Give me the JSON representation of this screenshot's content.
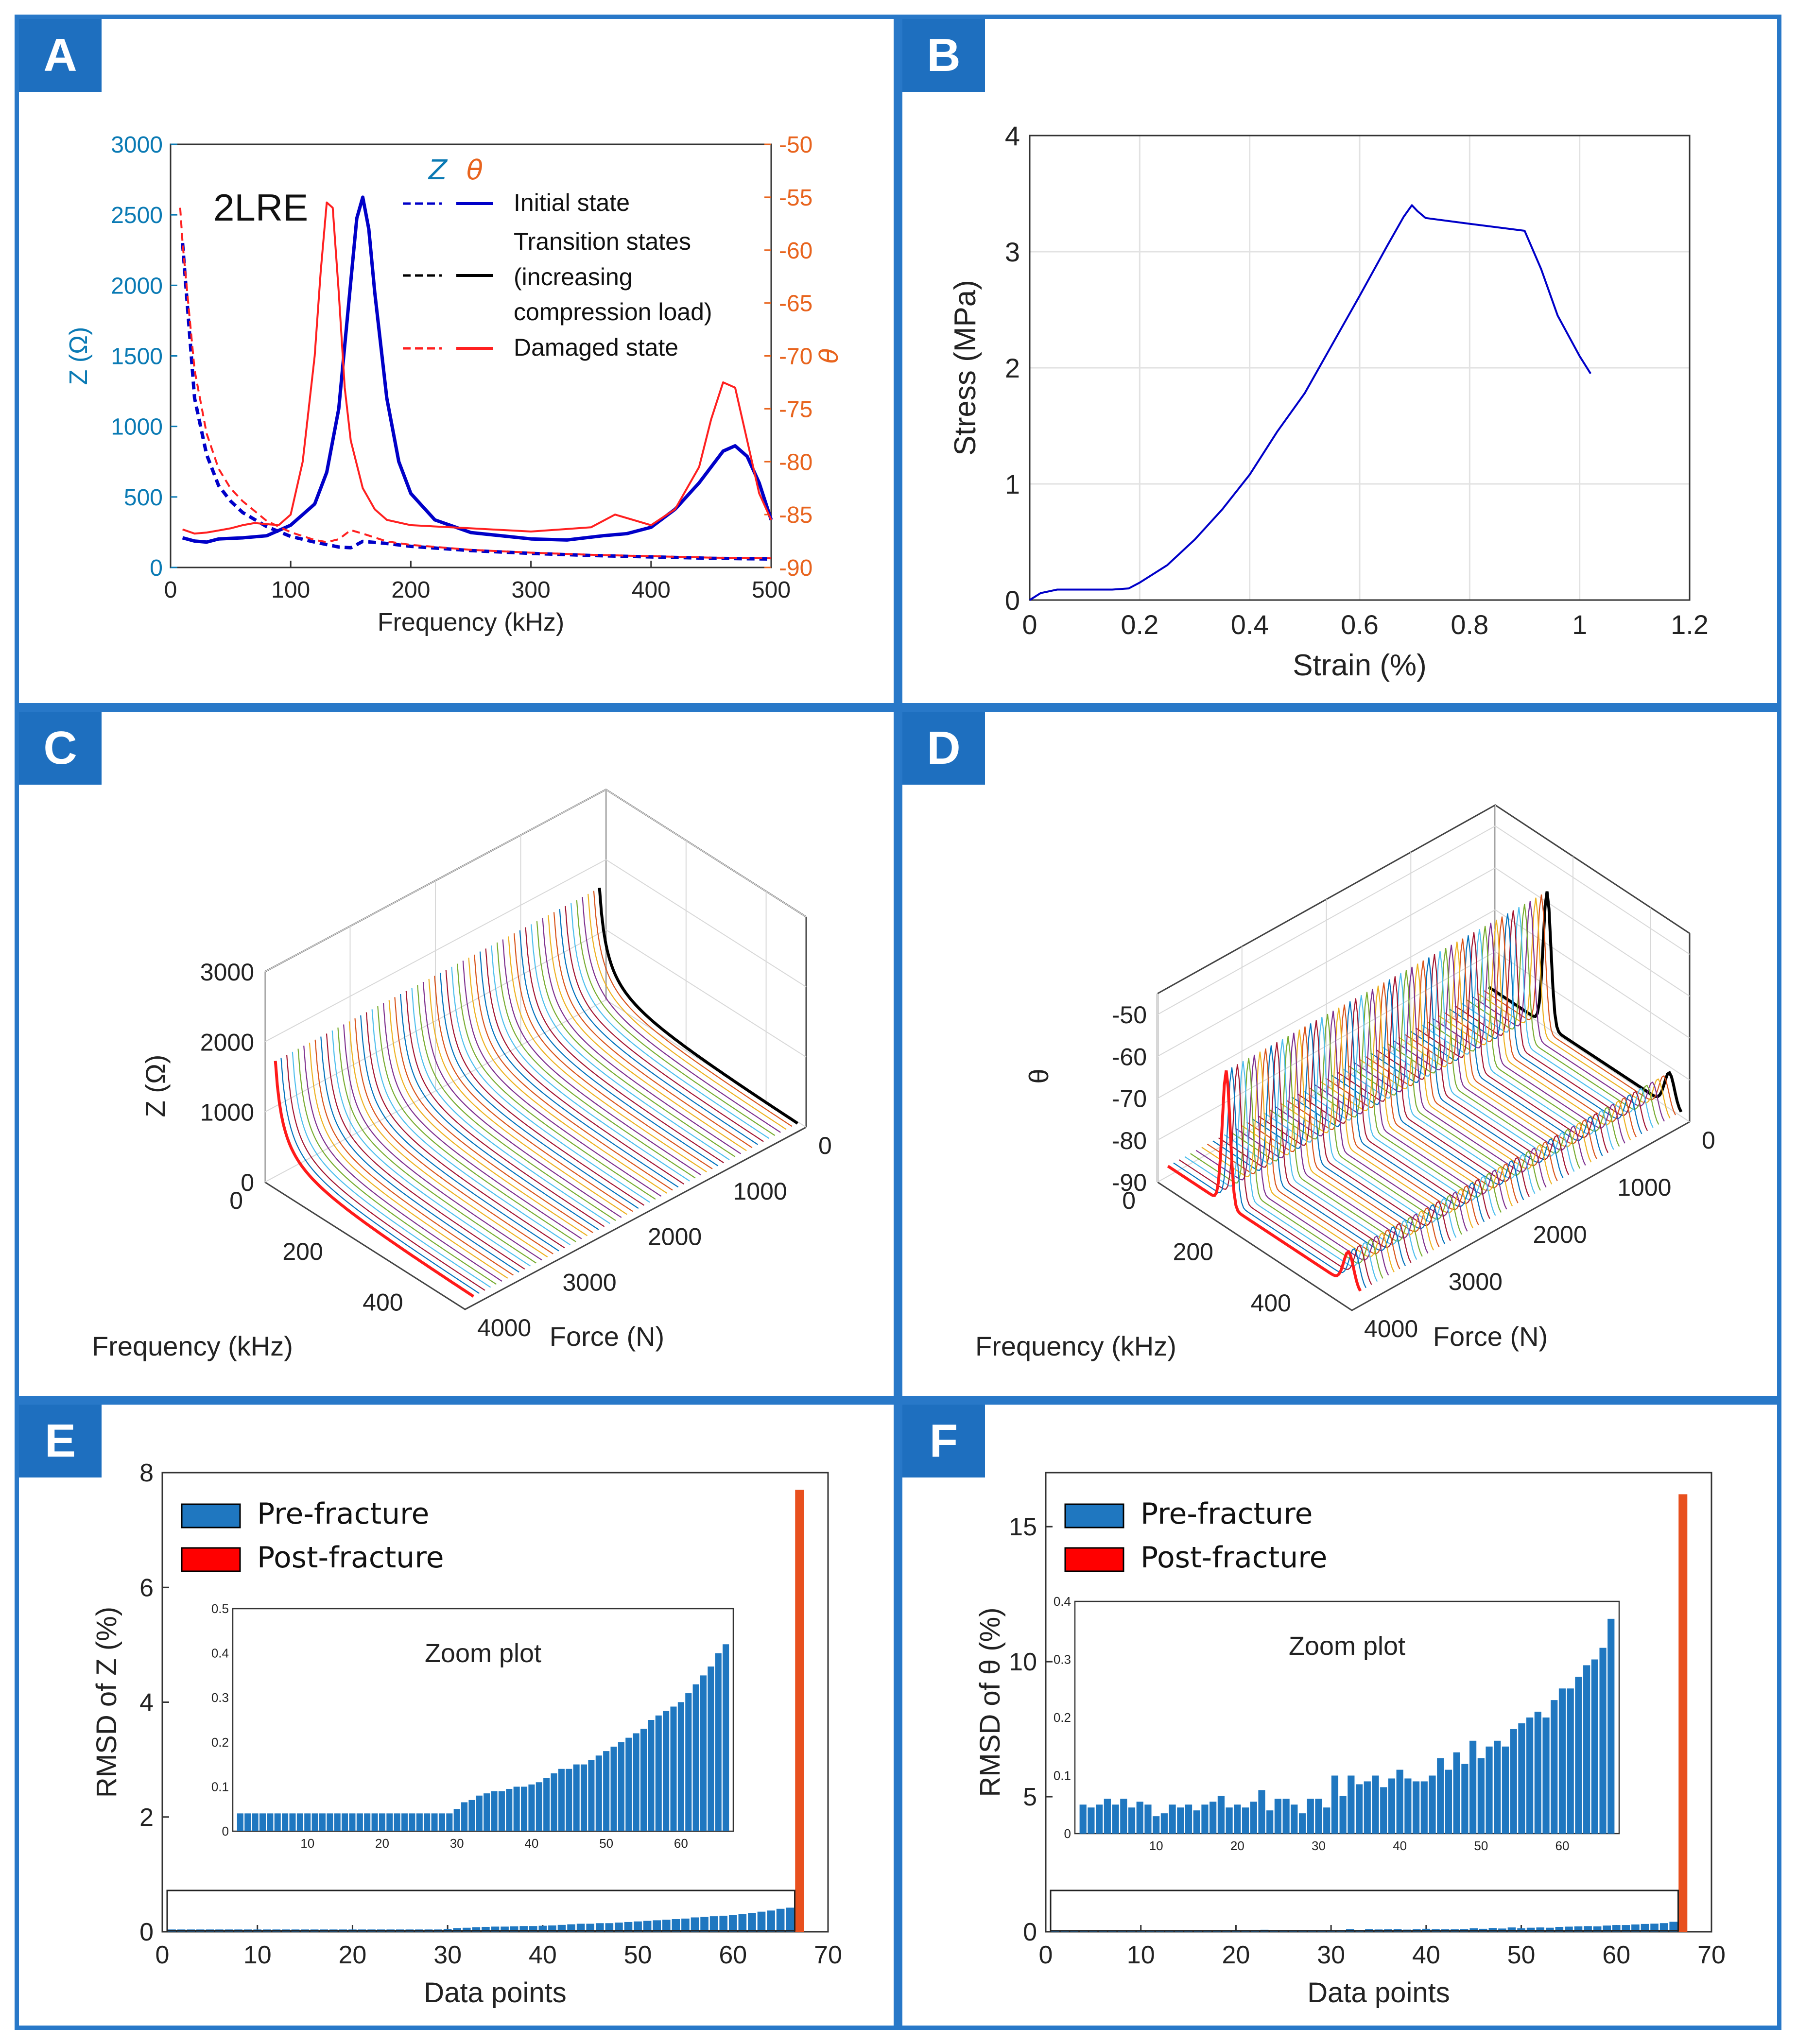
{
  "panels": {
    "A": {
      "letter": "A"
    },
    "B": {
      "letter": "B"
    },
    "C": {
      "letter": "C"
    },
    "D": {
      "letter": "D"
    },
    "E": {
      "letter": "E"
    },
    "F": {
      "letter": "F"
    }
  },
  "colors": {
    "frame": "#2878c8",
    "badge": "#1e6fbf",
    "blue": "#0000c8",
    "red": "#ff2020",
    "zaxis": "#0a7ab4",
    "thetaaxis": "#e8641e",
    "bar": "#1f77c0",
    "postbar": "#e8501e"
  },
  "chart_data": [
    {
      "panel": "A",
      "type": "line",
      "label": "2LRE",
      "xlabel": "Frequency (kHz)",
      "ylabel": "Z (Ω)",
      "y2label": "θ",
      "xlim": [
        0,
        500
      ],
      "ylim": [
        0,
        3000
      ],
      "y2lim": [
        -90,
        -50
      ],
      "xticks": [
        0,
        100,
        200,
        300,
        400,
        500
      ],
      "yticks": [
        0,
        500,
        1000,
        1500,
        2000,
        2500,
        3000
      ],
      "y2ticks": [
        -50,
        -55,
        -60,
        -65,
        -70,
        -75,
        -80,
        -85,
        -90
      ],
      "legend_header": {
        "z": "Z",
        "theta": "θ"
      },
      "legend": [
        "Initial state",
        "Transition states",
        "(increasing",
        "compression load)",
        "Damaged state"
      ],
      "series": [
        {
          "name": "Initial state Z",
          "axis": "left",
          "style": "dashed",
          "color": "blue",
          "x": [
            10,
            20,
            30,
            40,
            50,
            60,
            80,
            100,
            120,
            140,
            150,
            160,
            180,
            200,
            250,
            300,
            350,
            400,
            450,
            500
          ],
          "y": [
            2300,
            1200,
            800,
            580,
            470,
            390,
            290,
            220,
            180,
            145,
            140,
            185,
            170,
            150,
            120,
            100,
            85,
            75,
            65,
            60
          ]
        },
        {
          "name": "Initial state θ",
          "axis": "right",
          "style": "solid",
          "color": "blue",
          "x": [
            10,
            20,
            30,
            40,
            60,
            80,
            100,
            120,
            130,
            140,
            150,
            155,
            160,
            165,
            170,
            180,
            190,
            200,
            220,
            250,
            300,
            330,
            360,
            380,
            400,
            420,
            440,
            460,
            470,
            480,
            490,
            500
          ],
          "y": [
            -87.2,
            -87.5,
            -87.6,
            -87.3,
            -87.2,
            -87.0,
            -86.0,
            -84.0,
            -81.0,
            -75.0,
            -63.0,
            -57.0,
            -55.0,
            -58.0,
            -64.0,
            -74.0,
            -80.0,
            -83.0,
            -85.5,
            -86.7,
            -87.3,
            -87.4,
            -87.0,
            -86.8,
            -86.2,
            -84.5,
            -82.0,
            -79.0,
            -78.5,
            -79.5,
            -82.0,
            -85.5
          ]
        },
        {
          "name": "Damaged state Z",
          "axis": "left",
          "style": "dashed",
          "color": "red",
          "x": [
            8,
            10,
            20,
            30,
            40,
            50,
            60,
            80,
            100,
            120,
            130,
            140,
            150,
            160,
            180,
            200,
            250,
            300,
            350,
            400,
            450,
            500
          ],
          "y": [
            2550,
            2300,
            1400,
            950,
            700,
            560,
            470,
            330,
            250,
            195,
            180,
            200,
            265,
            240,
            185,
            160,
            125,
            105,
            90,
            80,
            70,
            65
          ]
        },
        {
          "name": "Damaged state θ",
          "axis": "right",
          "style": "solid",
          "color": "red",
          "x": [
            10,
            20,
            30,
            40,
            50,
            60,
            70,
            80,
            90,
            100,
            110,
            120,
            125,
            130,
            135,
            140,
            145,
            150,
            160,
            170,
            180,
            200,
            250,
            300,
            350,
            370,
            400,
            420,
            440,
            450,
            460,
            470,
            480,
            490,
            500
          ],
          "y": [
            -86.4,
            -86.8,
            -86.7,
            -86.5,
            -86.3,
            -86.0,
            -85.8,
            -85.9,
            -86.0,
            -85.0,
            -80.0,
            -70.0,
            -62.0,
            -55.5,
            -56.0,
            -64.0,
            -73.0,
            -78.0,
            -82.5,
            -84.5,
            -85.5,
            -86.0,
            -86.3,
            -86.6,
            -86.2,
            -85.0,
            -86.0,
            -84.5,
            -80.5,
            -76.0,
            -72.5,
            -73.0,
            -78.0,
            -83.0,
            -85.5
          ]
        }
      ]
    },
    {
      "panel": "B",
      "type": "line",
      "xlabel": "Strain (%)",
      "ylabel": "Stress (MPa)",
      "xlim": [
        0,
        1.2
      ],
      "ylim": [
        0,
        4
      ],
      "xticks": [
        0,
        0.2,
        0.4,
        0.6,
        0.8,
        1,
        1.2
      ],
      "xtick_labels": [
        "0",
        "0.2",
        "0.4",
        "0.6",
        "0.8",
        "1",
        "1.2"
      ],
      "yticks": [
        0,
        1,
        2,
        3,
        4
      ],
      "grid": true,
      "series": [
        {
          "name": "Stress-strain",
          "color": "blue",
          "x": [
            0,
            0.02,
            0.05,
            0.1,
            0.15,
            0.18,
            0.2,
            0.25,
            0.3,
            0.35,
            0.4,
            0.45,
            0.5,
            0.55,
            0.6,
            0.65,
            0.68,
            0.695,
            0.705,
            0.72,
            0.8,
            0.9,
            0.93,
            0.96,
            1.0,
            1.02
          ],
          "y": [
            0,
            0.06,
            0.09,
            0.09,
            0.09,
            0.1,
            0.15,
            0.3,
            0.52,
            0.78,
            1.08,
            1.45,
            1.78,
            2.2,
            2.62,
            3.05,
            3.3,
            3.4,
            3.35,
            3.29,
            3.24,
            3.18,
            2.85,
            2.45,
            2.1,
            1.95
          ]
        }
      ]
    },
    {
      "panel": "C",
      "type": "3d-waterfall",
      "xlabel": "Frequency (kHz)",
      "ylabel": "Force (N)",
      "zlabel": "Z (Ω)",
      "xticks": [
        0,
        200,
        400
      ],
      "yticks": [
        0,
        1000,
        2000,
        3000,
        4000
      ],
      "zticks": [
        0,
        1000,
        2000,
        3000
      ],
      "curves": 58,
      "highlight": [
        {
          "name": "Initial state",
          "color": "black"
        },
        {
          "name": "Damaged state",
          "color": "red"
        }
      ]
    },
    {
      "panel": "D",
      "type": "3d-waterfall",
      "xlabel": "Frequency (kHz)",
      "ylabel": "Force (N)",
      "zlabel": "θ",
      "xticks": [
        0,
        200,
        400
      ],
      "yticks": [
        0,
        1000,
        2000,
        3000,
        4000
      ],
      "zticks": [
        -90,
        -80,
        -70,
        -60,
        -50
      ],
      "curves": 58,
      "highlight": [
        {
          "name": "Initial state",
          "color": "black"
        },
        {
          "name": "Damaged state",
          "color": "red"
        }
      ]
    },
    {
      "panel": "E",
      "type": "bar",
      "xlabel": "Data points",
      "ylabel": "RMSD of Z (%)",
      "xlim": [
        0,
        70
      ],
      "ylim": [
        0,
        8
      ],
      "xticks": [
        0,
        10,
        20,
        30,
        40,
        50,
        60,
        70
      ],
      "yticks": [
        0,
        2,
        4,
        6,
        8
      ],
      "legend": [
        "Pre-fracture",
        "Post-fracture"
      ],
      "pre_fracture": [
        0.04,
        0.04,
        0.04,
        0.04,
        0.04,
        0.04,
        0.04,
        0.04,
        0.04,
        0.04,
        0.04,
        0.04,
        0.04,
        0.04,
        0.04,
        0.04,
        0.04,
        0.04,
        0.04,
        0.04,
        0.04,
        0.04,
        0.04,
        0.04,
        0.04,
        0.04,
        0.04,
        0.04,
        0.04,
        0.05,
        0.065,
        0.07,
        0.08,
        0.085,
        0.09,
        0.09,
        0.095,
        0.1,
        0.1,
        0.105,
        0.11,
        0.12,
        0.13,
        0.14,
        0.14,
        0.15,
        0.15,
        0.16,
        0.17,
        0.18,
        0.19,
        0.2,
        0.21,
        0.22,
        0.23,
        0.25,
        0.26,
        0.27,
        0.28,
        0.29,
        0.31,
        0.33,
        0.35,
        0.37,
        0.4,
        0.42
      ],
      "post_fracture": [
        {
          "x": 67,
          "value": 7.7
        }
      ],
      "inset": {
        "title": "Zoom plot",
        "ylim": [
          0,
          0.5
        ],
        "yticks": [
          0,
          0.1,
          0.2,
          0.3,
          0.4,
          0.5
        ],
        "xticks": [
          10,
          20,
          30,
          40,
          50,
          60
        ]
      }
    },
    {
      "panel": "F",
      "type": "bar",
      "xlabel": "Data points",
      "ylabel": "RMSD of θ (%)",
      "xlim": [
        0,
        70
      ],
      "ylim": [
        0,
        17
      ],
      "xticks": [
        0,
        10,
        20,
        30,
        40,
        50,
        60,
        70
      ],
      "yticks": [
        0,
        5,
        10,
        15
      ],
      "legend": [
        "Pre-fracture",
        "Post-fracture"
      ],
      "pre_fracture": [
        0.05,
        0.045,
        0.05,
        0.06,
        0.05,
        0.06,
        0.045,
        0.055,
        0.05,
        0.03,
        0.035,
        0.05,
        0.045,
        0.05,
        0.04,
        0.05,
        0.055,
        0.065,
        0.045,
        0.05,
        0.045,
        0.055,
        0.075,
        0.04,
        0.06,
        0.06,
        0.05,
        0.035,
        0.06,
        0.06,
        0.045,
        0.1,
        0.065,
        0.1,
        0.085,
        0.09,
        0.1,
        0.08,
        0.095,
        0.11,
        0.095,
        0.09,
        0.09,
        0.1,
        0.13,
        0.11,
        0.14,
        0.12,
        0.16,
        0.13,
        0.15,
        0.16,
        0.15,
        0.18,
        0.19,
        0.2,
        0.21,
        0.2,
        0.23,
        0.25,
        0.25,
        0.27,
        0.29,
        0.3,
        0.32,
        0.37
      ],
      "post_fracture": [
        {
          "x": 67,
          "value": 16.2
        }
      ],
      "inset": {
        "title": "Zoom plot",
        "ylim": [
          0,
          0.4
        ],
        "yticks": [
          0,
          0.1,
          0.2,
          0.3,
          0.4
        ],
        "xticks": [
          10,
          20,
          30,
          40,
          50,
          60
        ]
      }
    }
  ]
}
